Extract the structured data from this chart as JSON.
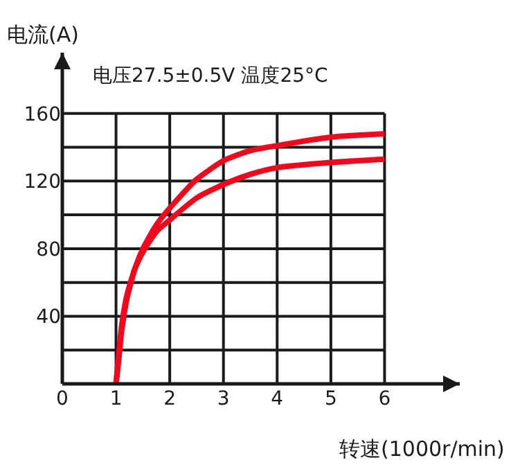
{
  "chart_data": {
    "type": "line",
    "title": "电压27.5±0.5V 温度25°C",
    "xlabel": "转速(1000r/min)",
    "ylabel": "电流(A)",
    "xlim": [
      0,
      7.4
    ],
    "ylim": [
      0,
      196
    ],
    "xticks": [
      0,
      1,
      2,
      3,
      4,
      5,
      6
    ],
    "yticks": [
      {
        "value": 0,
        "label": null
      },
      {
        "value": 20,
        "label": null
      },
      40,
      {
        "value": 60,
        "label": null
      },
      80,
      {
        "value": 100,
        "label": null
      },
      120,
      {
        "value": 140,
        "label": null
      },
      160
    ],
    "grid": true,
    "marker": "none",
    "line_style": "solid",
    "series": [
      {
        "color": "#ee0a1e",
        "x": [
          1,
          1.05,
          1.1,
          1.2,
          1.35,
          1.5,
          1.75,
          2,
          2.5,
          3,
          3.5,
          4,
          5,
          6
        ],
        "values": [
          0,
          14,
          30,
          50,
          68,
          80,
          94,
          104,
          121,
          132,
          138,
          141,
          146,
          148
        ]
      },
      {
        "color": "#ee0a1e",
        "x": [
          1,
          1.05,
          1.1,
          1.2,
          1.35,
          1.5,
          1.75,
          2,
          2.5,
          3,
          3.5,
          4,
          5,
          6
        ],
        "values": [
          0,
          17,
          33,
          52,
          68,
          78,
          90,
          97,
          110,
          118,
          124,
          128,
          131,
          133
        ]
      }
    ]
  }
}
